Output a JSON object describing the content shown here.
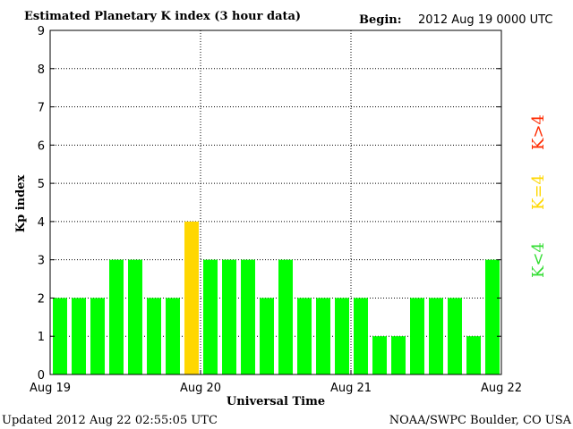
{
  "chart_data": {
    "type": "bar",
    "title": "Estimated Planetary K index (3 hour data)",
    "begin_label": "Begin:",
    "begin_value": "2012 Aug 19 0000 UTC",
    "xlabel": "Universal Time",
    "ylabel": "Kp index",
    "ylim": [
      0,
      9
    ],
    "yticks": [
      "0",
      "1",
      "2",
      "3",
      "4",
      "5",
      "6",
      "7",
      "8",
      "9"
    ],
    "xticks": [
      "Aug 19",
      "Aug 20",
      "Aug 21",
      "Aug 22"
    ],
    "grid": true,
    "values": [
      2,
      2,
      2,
      3,
      3,
      2,
      2,
      4,
      3,
      3,
      3,
      2,
      3,
      2,
      2,
      2,
      2,
      1,
      1,
      2,
      2,
      2,
      1,
      3
    ],
    "colors": {
      "below4": "#00ff00",
      "equal4": "#ffd700",
      "above4": "#ff2a00"
    },
    "legend": [
      {
        "label": "K<4",
        "color": "#33dd33"
      },
      {
        "label": "K=4",
        "color": "#ffd700"
      },
      {
        "label": "K>4",
        "color": "#ff2a00"
      }
    ]
  },
  "footer": {
    "updated": "Updated 2012 Aug 22 02:55:05 UTC",
    "source": "NOAA/SWPC Boulder, CO USA"
  }
}
